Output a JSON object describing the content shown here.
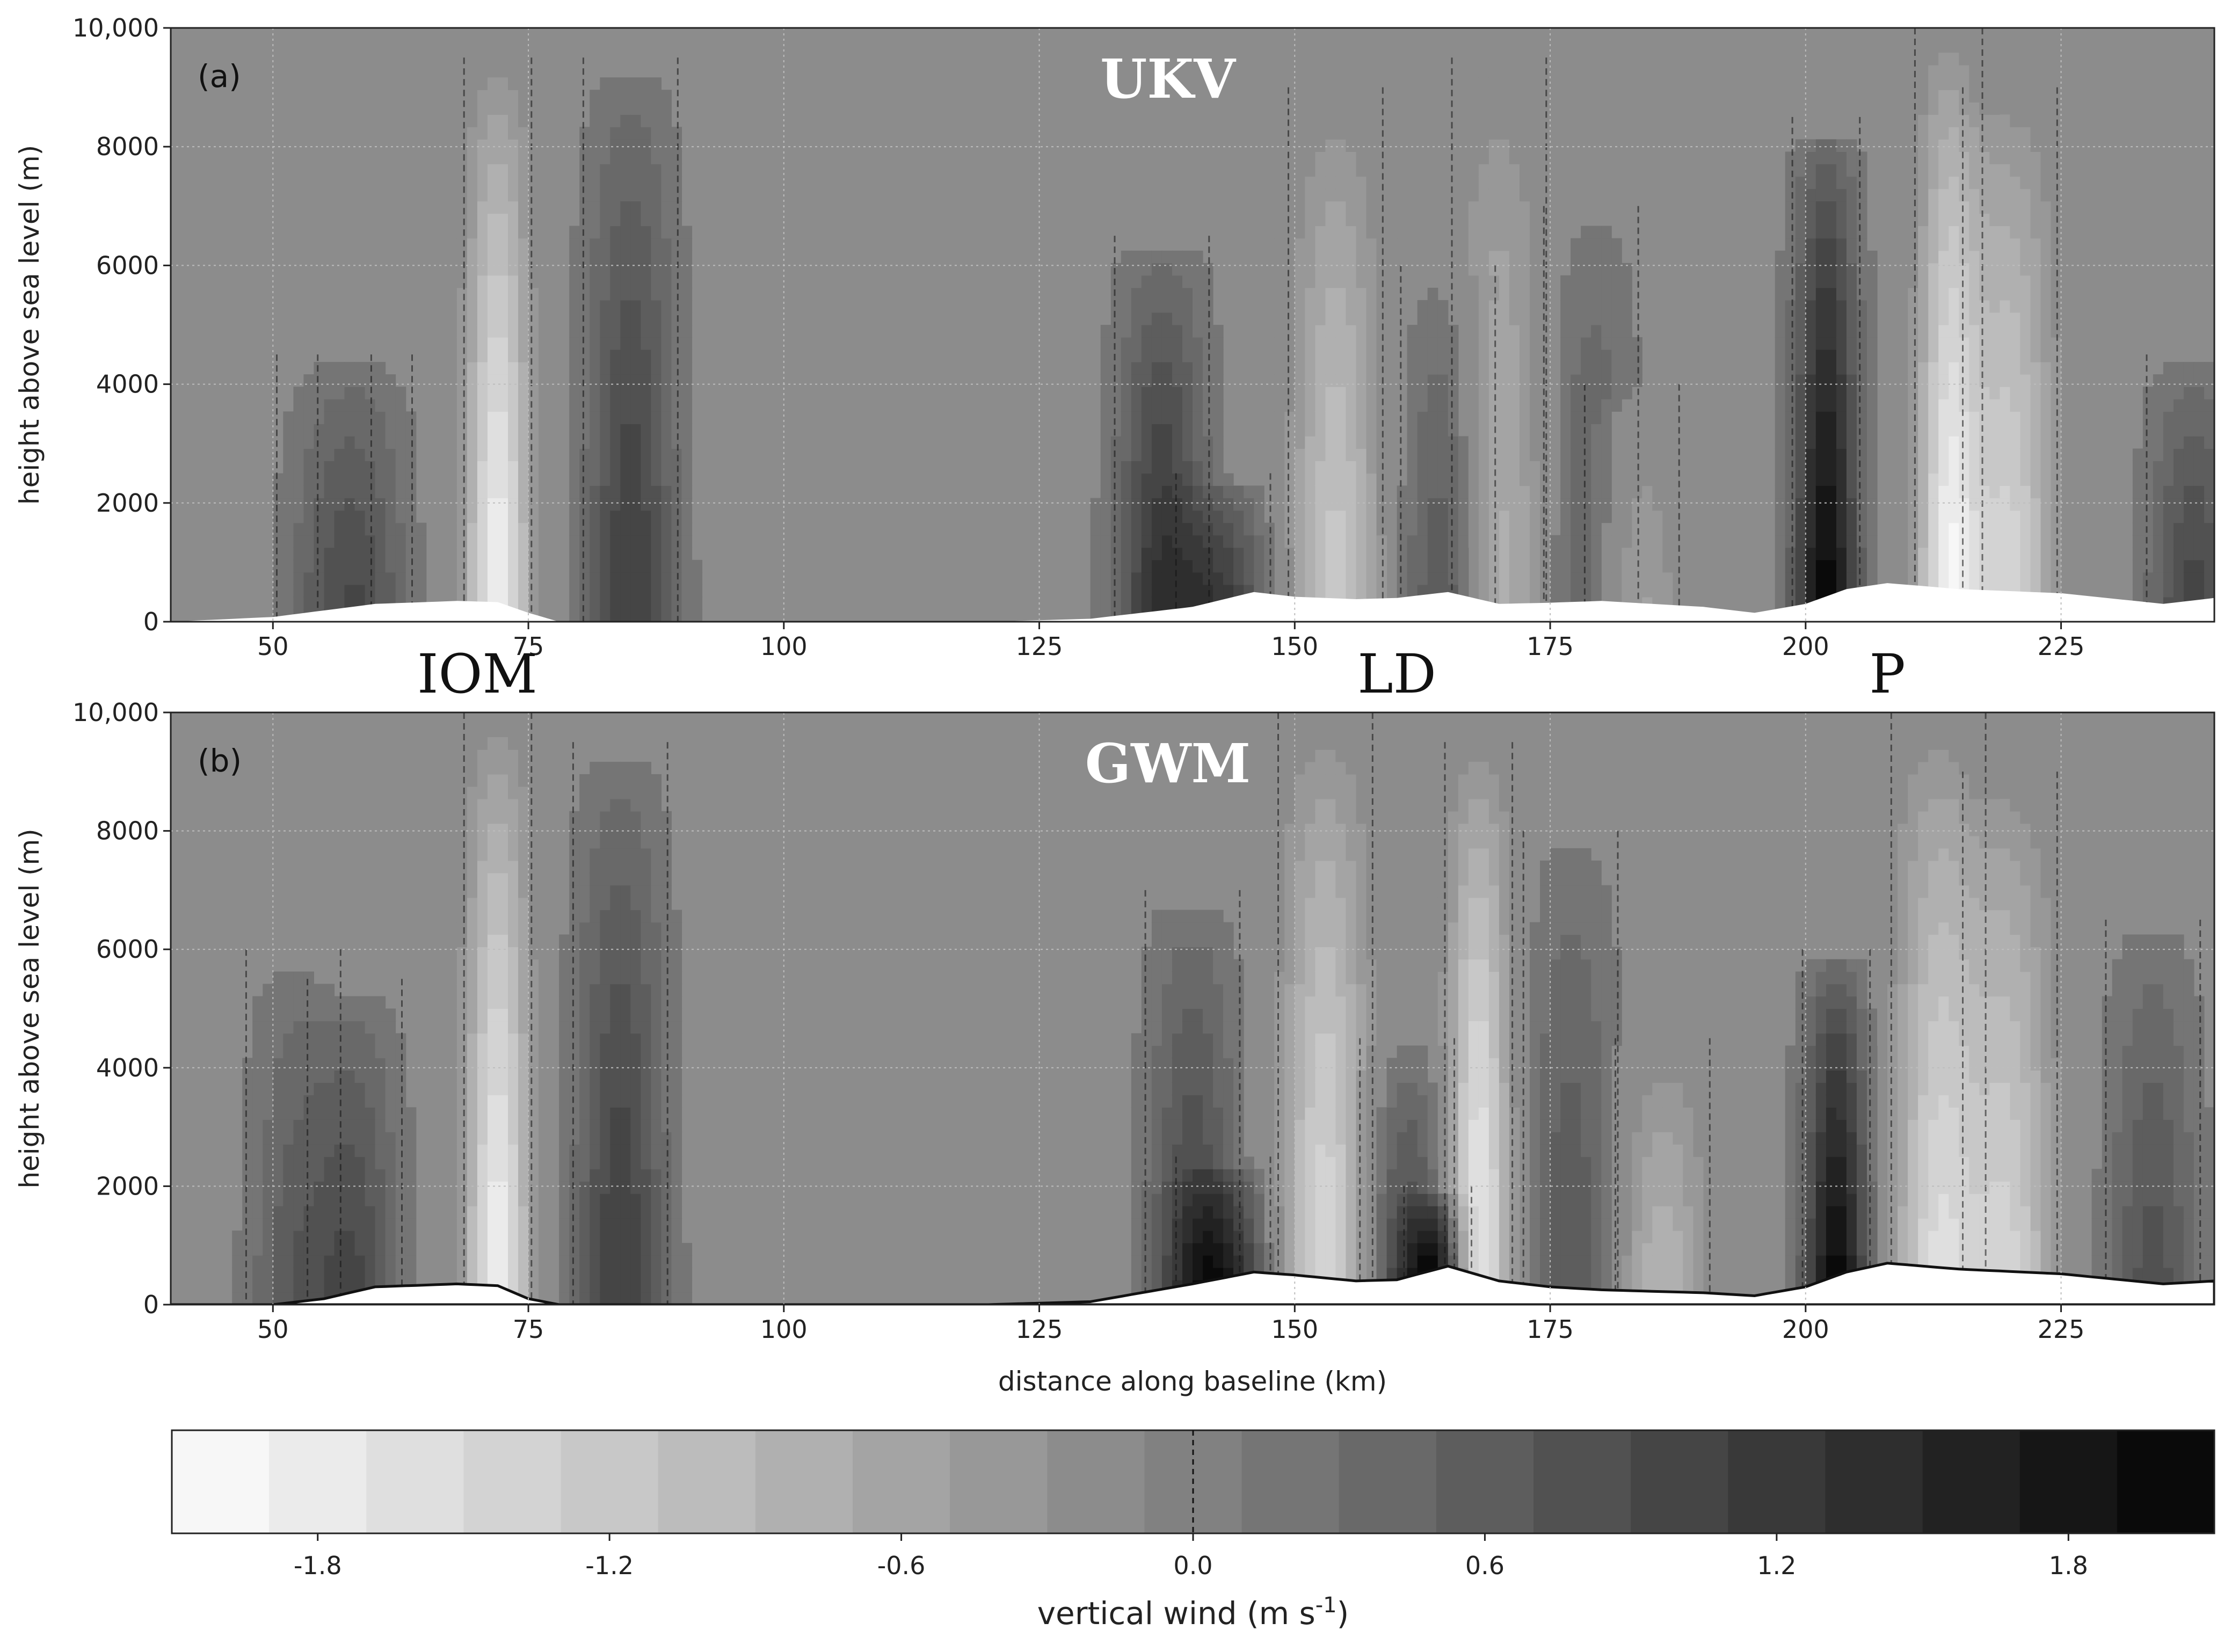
{
  "colors": {
    "field_neutral": "#8c8c8c",
    "updraft_max": "#0a0a0a",
    "downdraft_max": "#f7f7f7",
    "terrain": "#ffffff",
    "zero_contour": "#111111",
    "grid": "#bdbdbd"
  },
  "chart_data": [
    {
      "panel_tag": "(a)",
      "model_label": "UKV",
      "type": "heatmap",
      "plot_kind": "filled contour cross-section",
      "xlabel": "",
      "ylabel": "height above sea level (m)",
      "xlim": [
        40,
        240
      ],
      "ylim": [
        0,
        10000
      ],
      "x_ticks": [
        "50",
        "75",
        "100",
        "125",
        "150",
        "175",
        "200",
        "225"
      ],
      "y_ticks": [
        "0",
        "2000",
        "4000",
        "6000",
        "8000",
        "10,000"
      ],
      "grid": true,
      "zero_contour": "dashed",
      "terrain_height": {
        "x": [
          40,
          50,
          60,
          68,
          72,
          75,
          78,
          90,
          100,
          110,
          120,
          130,
          140,
          146,
          150,
          156,
          160,
          165,
          170,
          175,
          180,
          190,
          195,
          200,
          204,
          208,
          215,
          225,
          235,
          240
        ],
        "y": [
          0,
          80,
          300,
          350,
          330,
          150,
          0,
          0,
          0,
          0,
          0,
          50,
          250,
          500,
          420,
          380,
          400,
          500,
          300,
          320,
          350,
          250,
          150,
          300,
          550,
          650,
          550,
          480,
          300,
          400
        ]
      },
      "features": [
        {
          "x": 55,
          "w": 0.45,
          "top": 4500
        },
        {
          "x": 59,
          "w": 0.7,
          "top": 4500
        },
        {
          "x": 72,
          "w": -1.9,
          "top": 9500
        },
        {
          "x": 85,
          "w": 1.1,
          "top": 9500
        },
        {
          "x": 137,
          "w": 1.3,
          "top": 6500
        },
        {
          "x": 143,
          "w": 1.1,
          "top": 2500
        },
        {
          "x": 154,
          "w": -1.2,
          "top": 9000
        },
        {
          "x": 165,
          "w": 0.8,
          "top": 6000
        },
        {
          "x": 170,
          "w": -0.9,
          "top": 9500
        },
        {
          "x": 179,
          "w": 0.6,
          "top": 7000
        },
        {
          "x": 183,
          "w": -0.7,
          "top": 4000
        },
        {
          "x": 202,
          "w": 2.0,
          "top": 8500
        },
        {
          "x": 214,
          "w": -1.8,
          "top": 10000
        },
        {
          "x": 220,
          "w": -1.4,
          "top": 9000
        },
        {
          "x": 238,
          "w": 1.0,
          "top": 4500
        }
      ]
    },
    {
      "panel_tag": "(b)",
      "model_label": "GWM",
      "type": "heatmap",
      "plot_kind": "filled contour cross-section",
      "xlabel": "distance along baseline (km)",
      "ylabel": "height above sea level (m)",
      "xlim": [
        40,
        240
      ],
      "ylim": [
        0,
        10000
      ],
      "x_ticks": [
        "50",
        "75",
        "100",
        "125",
        "150",
        "175",
        "200",
        "225"
      ],
      "y_ticks": [
        "0",
        "2000",
        "4000",
        "6000",
        "8000",
        "10,000"
      ],
      "grid": true,
      "zero_contour": "dashed",
      "terrain_height": {
        "x": [
          40,
          50,
          55,
          60,
          68,
          72,
          75,
          78,
          90,
          100,
          110,
          120,
          130,
          140,
          146,
          150,
          156,
          160,
          165,
          170,
          175,
          180,
          190,
          195,
          200,
          204,
          208,
          215,
          225,
          235,
          240
        ],
        "y": [
          0,
          0,
          100,
          300,
          350,
          320,
          100,
          0,
          0,
          0,
          0,
          0,
          50,
          350,
          550,
          500,
          400,
          420,
          650,
          400,
          300,
          250,
          200,
          150,
          300,
          550,
          700,
          600,
          520,
          350,
          400
        ]
      },
      "features": [
        {
          "x": 52,
          "w": 0.6,
          "top": 6000
        },
        {
          "x": 58,
          "w": 0.9,
          "top": 5500
        },
        {
          "x": 72,
          "w": -1.9,
          "top": 10000
        },
        {
          "x": 84,
          "w": 1.1,
          "top": 9500
        },
        {
          "x": 140,
          "w": 1.0,
          "top": 7000
        },
        {
          "x": 143,
          "w": 1.4,
          "top": 2500
        },
        {
          "x": 153,
          "w": -1.5,
          "top": 10000
        },
        {
          "x": 161,
          "w": 1.0,
          "top": 4500
        },
        {
          "x": 164,
          "w": 1.9,
          "top": 2000
        },
        {
          "x": 168,
          "w": -1.9,
          "top": 9500
        },
        {
          "x": 177,
          "w": 0.7,
          "top": 8000
        },
        {
          "x": 186,
          "w": -0.9,
          "top": 4500
        },
        {
          "x": 203,
          "w": 2.0,
          "top": 6000
        },
        {
          "x": 213,
          "w": -1.5,
          "top": 10000
        },
        {
          "x": 220,
          "w": -1.3,
          "top": 9000
        },
        {
          "x": 234,
          "w": 0.8,
          "top": 6500
        }
      ]
    }
  ],
  "region_labels": [
    {
      "text": "IOM",
      "x": 70
    },
    {
      "text": "LD",
      "x": 160
    },
    {
      "text": "P",
      "x": 208
    }
  ],
  "colorbar": {
    "title": "vertical wind (m s",
    "title_sup": "-1",
    "title_end": ")",
    "range": [
      -2.1,
      2.1
    ],
    "bins": 21,
    "tick_labels": [
      "-1.8",
      "-1.2",
      "-0.6",
      "0.0",
      "0.6",
      "1.2",
      "1.8"
    ],
    "tick_values": [
      -1.8,
      -1.2,
      -0.6,
      0.0,
      0.6,
      1.2,
      1.8
    ],
    "zero_line": "dashed"
  }
}
